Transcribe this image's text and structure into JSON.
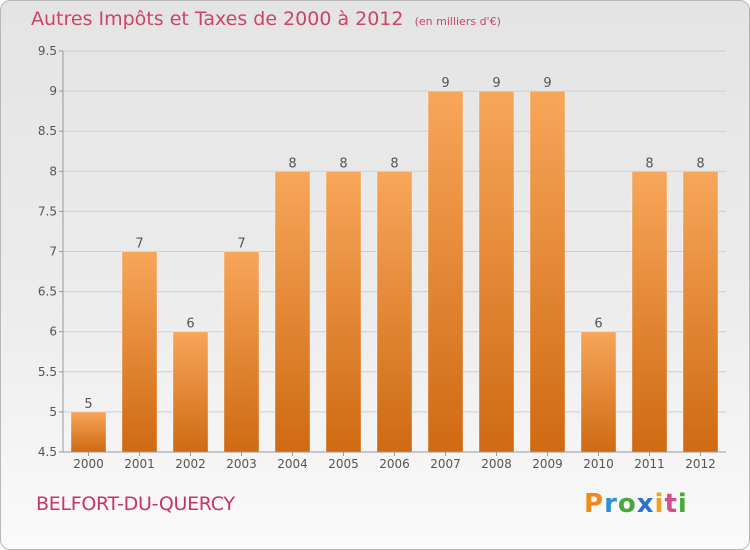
{
  "title": "Autres Impôts et Taxes de 2000 à 2012",
  "unit": "(en milliers d'€)",
  "commune": "BELFORT-DU-QUERCY",
  "logo": "Proxiti",
  "colors": {
    "bar_top": "#f7a65a",
    "bar_bottom": "#cf6a12",
    "title": "#cc4466",
    "grid": "#cfcfcf"
  },
  "chart_data": {
    "type": "bar",
    "categories": [
      "2000",
      "2001",
      "2002",
      "2003",
      "2004",
      "2005",
      "2006",
      "2007",
      "2008",
      "2009",
      "2010",
      "2011",
      "2012"
    ],
    "values": [
      5,
      7,
      6,
      7,
      8,
      8,
      8,
      9,
      9,
      9,
      6,
      8,
      8
    ],
    "ylim": [
      4.5,
      9.5
    ],
    "yticks": [
      "4.5",
      "5",
      "5.5",
      "6",
      "6.5",
      "7",
      "7.5",
      "8",
      "8.5",
      "9",
      "9.5"
    ],
    "grid": "horizontal",
    "xlabel": "",
    "ylabel": ""
  }
}
